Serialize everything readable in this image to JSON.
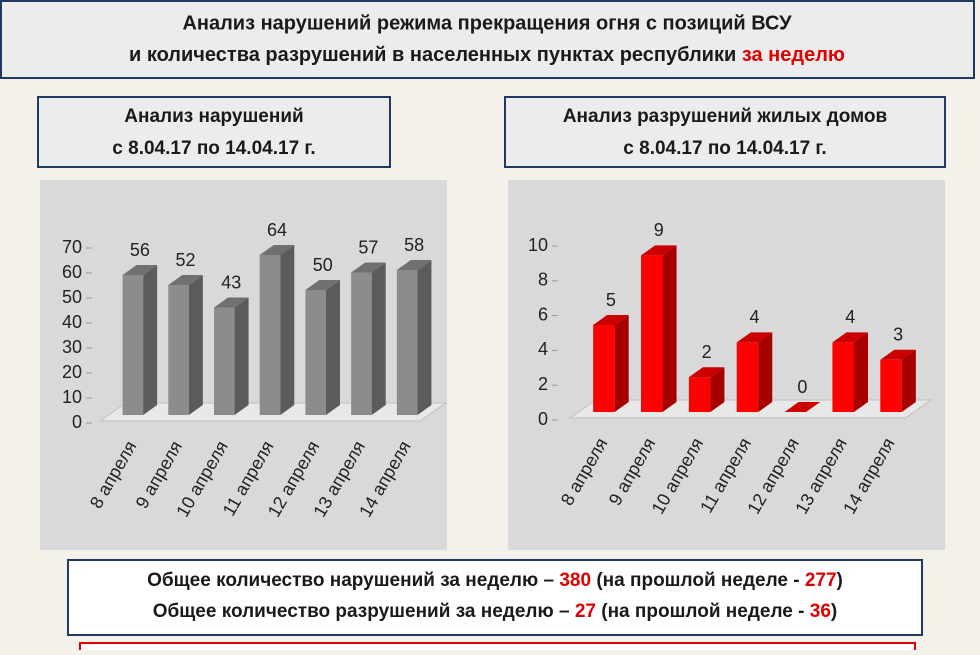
{
  "header": {
    "title_line1": "Анализ нарушений режима прекращения огня с позиций ВСУ",
    "title_line2": "и количества разрушений в населенных пунктах республики",
    "title_highlight": "за неделю"
  },
  "chart_data": [
    {
      "type": "bar",
      "title": "Анализ нарушений",
      "subtitle": "с 8.04.17 по 14.04.17 г.",
      "categories": [
        "8 апреля",
        "9 апреля",
        "10 апреля",
        "11 апреля",
        "12 апреля",
        "13 апреля",
        "14 апреля"
      ],
      "values": [
        56,
        52,
        43,
        64,
        50,
        57,
        58
      ],
      "color": "#8c8c8c",
      "ylim": [
        0,
        70
      ],
      "yticks": [
        0,
        10,
        20,
        30,
        40,
        50,
        60,
        70
      ]
    },
    {
      "type": "bar",
      "title": "Анализ разрушений жилых домов",
      "subtitle": "с 8.04.17 по 14.04.17 г.",
      "categories": [
        "8 апреля",
        "9 апреля",
        "10 апреля",
        "11 апреля",
        "12 апреля",
        "13 апреля",
        "14 апреля"
      ],
      "values": [
        5,
        9,
        2,
        4,
        0,
        4,
        3
      ],
      "color": "#ff0000",
      "ylim": [
        0,
        10
      ],
      "yticks": [
        0,
        2,
        4,
        6,
        8,
        10
      ]
    }
  ],
  "summary": [
    [
      "Общее количество нарушений за неделю – ",
      380,
      " (на прошлой неделе - ",
      277,
      ")"
    ],
    [
      "Общее количество разрушений за неделю – ",
      27,
      " (на прошлой неделе - ",
      36,
      ")"
    ]
  ]
}
